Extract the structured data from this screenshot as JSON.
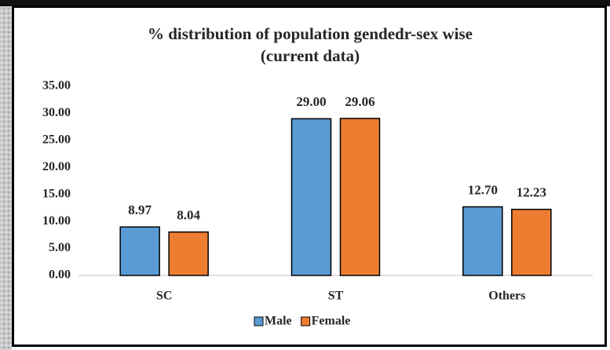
{
  "chart_data": {
    "type": "bar",
    "title": "% distribution of population gendedr-sex wise",
    "subtitle": "(current data)",
    "categories": [
      "SC",
      "ST",
      "Others"
    ],
    "series": [
      {
        "name": "Male",
        "color": "#5b9bd5",
        "values": [
          8.97,
          29.0,
          12.7
        ],
        "value_labels": [
          "8.97",
          "29.00",
          "12.70"
        ]
      },
      {
        "name": "Female",
        "color": "#ed7d31",
        "values": [
          8.04,
          29.06,
          12.23
        ],
        "value_labels": [
          "8.04",
          "29.06",
          "12.23"
        ]
      }
    ],
    "ylim": [
      0,
      35
    ],
    "yticks": [
      {
        "value": 0,
        "label": "0.00"
      },
      {
        "value": 5,
        "label": "5.00"
      },
      {
        "value": 10,
        "label": "10.00"
      },
      {
        "value": 15,
        "label": "15.00"
      },
      {
        "value": 20,
        "label": "20.00"
      },
      {
        "value": 25,
        "label": "25.00"
      },
      {
        "value": 30,
        "label": "30.00"
      },
      {
        "value": 35,
        "label": "35.00"
      }
    ],
    "grid": false,
    "legend": "bottom"
  }
}
